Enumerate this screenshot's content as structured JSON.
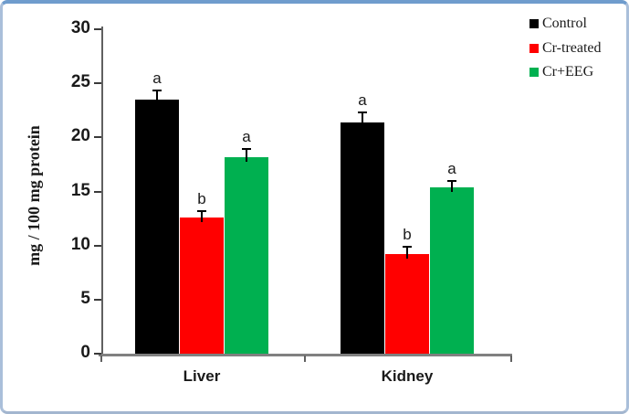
{
  "figure": {
    "frame_border_top_color": "#6f9ccd",
    "frame_border_side_color": "#aabfda",
    "background": "#ffffff",
    "axis_color": "#808080",
    "tick_color": "#3a3a3a"
  },
  "chart_data": {
    "type": "bar",
    "title": "",
    "xlabel": "",
    "ylabel": "mg / 100 mg protein",
    "categories": [
      "Liver",
      "Kidney"
    ],
    "series": [
      {
        "name": "Control",
        "color": "#000000",
        "values": [
          23.5,
          21.4
        ],
        "errors": [
          0.8,
          0.9
        ],
        "sig_labels": [
          "a",
          "a"
        ]
      },
      {
        "name": "Cr-treated",
        "color": "#ff0000",
        "values": [
          12.6,
          9.2
        ],
        "errors": [
          0.6,
          0.7
        ],
        "sig_labels": [
          "b",
          "b"
        ]
      },
      {
        "name": "Cr+EEG",
        "color": "#00b050",
        "values": [
          18.2,
          15.4
        ],
        "errors": [
          0.7,
          0.6
        ],
        "sig_labels": [
          "a",
          "a"
        ]
      }
    ],
    "ylim": [
      0,
      30
    ],
    "yticks": [
      0,
      5,
      10,
      15,
      20,
      25,
      30
    ],
    "grid": false,
    "error_bars": true,
    "legend_position": "top-right"
  }
}
